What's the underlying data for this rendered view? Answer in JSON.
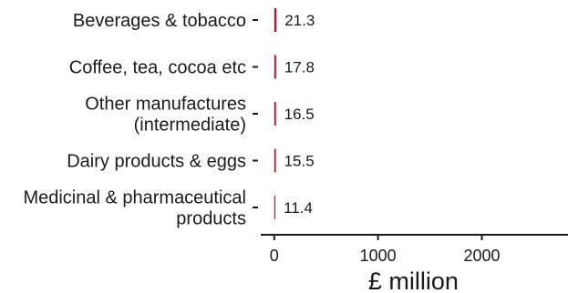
{
  "chart_data": {
    "type": "bar",
    "orientation": "horizontal",
    "categories": [
      [
        "Beverages & tobacco"
      ],
      [
        "Coffee, tea, cocoa etc"
      ],
      [
        "Other manufactures",
        "(intermediate)"
      ],
      [
        "Dairy products & eggs"
      ],
      [
        "Medicinal & pharmaceutical",
        "products"
      ]
    ],
    "values": [
      21.3,
      17.8,
      16.5,
      15.5,
      11.4
    ],
    "data_labels": [
      "21.3",
      "17.8",
      "16.5",
      "15.5",
      "11.4"
    ],
    "xlabel": "£ million",
    "ylabel": "",
    "xlim": [
      -130,
      2830
    ],
    "xticks": [
      0,
      1000,
      2000
    ],
    "xtick_labels": [
      "0",
      "1000",
      "2000"
    ],
    "grid": false,
    "legend": "none",
    "bar_color": "#b5163d",
    "text_color": "#1a1a1a"
  }
}
